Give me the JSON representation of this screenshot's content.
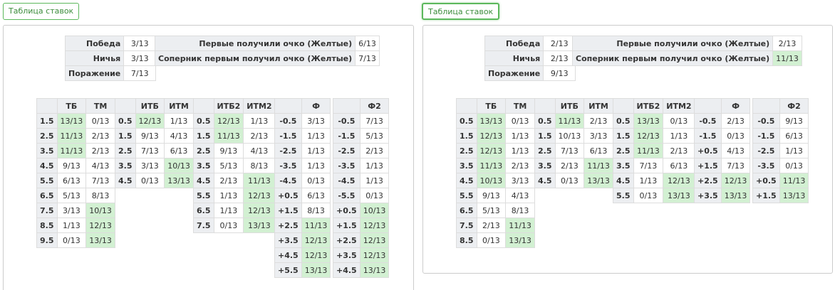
{
  "panels": [
    {
      "button": "Таблица ставок",
      "summary": [
        [
          "Победа",
          "3/13"
        ],
        [
          "Ничья",
          "3/13"
        ],
        [
          "Поражение",
          "7/13"
        ]
      ],
      "first_point": [
        [
          "Первые получили очко (Желтые)",
          "6/13"
        ],
        [
          "Соперник первым получил очко (Желтые)",
          "7/13"
        ]
      ],
      "first_point_highlight": [],
      "tables": [
        {
          "headers": [
            "ТБ",
            "ТМ"
          ],
          "rows": [
            [
              "1.5",
              "13/13",
              "0/13"
            ],
            [
              "2.5",
              "11/13",
              "2/13"
            ],
            [
              "3.5",
              "11/13",
              "2/13"
            ],
            [
              "4.5",
              "9/13",
              "4/13"
            ],
            [
              "5.5",
              "6/13",
              "7/13"
            ],
            [
              "6.5",
              "5/13",
              "8/13"
            ],
            [
              "7.5",
              "3/13",
              "10/13"
            ],
            [
              "8.5",
              "1/13",
              "12/13"
            ],
            [
              "9.5",
              "0/13",
              "13/13"
            ]
          ],
          "highlight": [
            [
              0,
              1
            ],
            [
              1,
              1
            ],
            [
              2,
              1
            ],
            [
              6,
              2
            ],
            [
              7,
              2
            ],
            [
              8,
              2
            ]
          ]
        },
        {
          "headers": [
            "ИТБ",
            "ИТМ"
          ],
          "rows": [
            [
              "0.5",
              "12/13",
              "1/13"
            ],
            [
              "1.5",
              "9/13",
              "4/13"
            ],
            [
              "2.5",
              "7/13",
              "6/13"
            ],
            [
              "3.5",
              "3/13",
              "10/13"
            ],
            [
              "4.5",
              "0/13",
              "13/13"
            ]
          ],
          "highlight": [
            [
              0,
              1
            ],
            [
              3,
              2
            ],
            [
              4,
              2
            ]
          ]
        },
        {
          "headers": [
            "ИТБ2",
            "ИТМ2"
          ],
          "rows": [
            [
              "0.5",
              "12/13",
              "1/13"
            ],
            [
              "1.5",
              "11/13",
              "2/13"
            ],
            [
              "2.5",
              "9/13",
              "4/13"
            ],
            [
              "3.5",
              "5/13",
              "8/13"
            ],
            [
              "4.5",
              "2/13",
              "11/13"
            ],
            [
              "5.5",
              "1/13",
              "12/13"
            ],
            [
              "6.5",
              "1/13",
              "12/13"
            ],
            [
              "7.5",
              "0/13",
              "13/13"
            ]
          ],
          "highlight": [
            [
              0,
              1
            ],
            [
              1,
              1
            ],
            [
              4,
              2
            ],
            [
              5,
              2
            ],
            [
              6,
              2
            ],
            [
              7,
              2
            ]
          ]
        },
        {
          "headers": [
            "Ф"
          ],
          "rows": [
            [
              "-0.5",
              "3/13"
            ],
            [
              "-1.5",
              "1/13"
            ],
            [
              "-2.5",
              "1/13"
            ],
            [
              "-3.5",
              "1/13"
            ],
            [
              "-4.5",
              "0/13"
            ],
            [
              "+0.5",
              "6/13"
            ],
            [
              "+1.5",
              "8/13"
            ],
            [
              "+2.5",
              "11/13"
            ],
            [
              "+3.5",
              "12/13"
            ],
            [
              "+4.5",
              "12/13"
            ],
            [
              "+5.5",
              "13/13"
            ]
          ],
          "highlight": [
            [
              7,
              1
            ],
            [
              8,
              1
            ],
            [
              9,
              1
            ],
            [
              10,
              1
            ]
          ]
        },
        {
          "headers": [
            "Ф2"
          ],
          "rows": [
            [
              "-0.5",
              "7/13"
            ],
            [
              "-1.5",
              "5/13"
            ],
            [
              "-2.5",
              "2/13"
            ],
            [
              "-3.5",
              "1/13"
            ],
            [
              "-4.5",
              "1/13"
            ],
            [
              "-5.5",
              "0/13"
            ],
            [
              "+0.5",
              "10/13"
            ],
            [
              "+1.5",
              "12/13"
            ],
            [
              "+2.5",
              "12/13"
            ],
            [
              "+3.5",
              "12/13"
            ],
            [
              "+4.5",
              "13/13"
            ]
          ],
          "highlight": [
            [
              6,
              1
            ],
            [
              7,
              1
            ],
            [
              8,
              1
            ],
            [
              9,
              1
            ],
            [
              10,
              1
            ]
          ]
        }
      ]
    },
    {
      "button": "Таблица ставок",
      "summary": [
        [
          "Победа",
          "2/13"
        ],
        [
          "Ничья",
          "2/13"
        ],
        [
          "Поражение",
          "9/13"
        ]
      ],
      "first_point": [
        [
          "Первые получили очко (Желтые)",
          "2/13"
        ],
        [
          "Соперник первым получил очко (Желтые)",
          "11/13"
        ]
      ],
      "first_point_highlight": [
        1
      ],
      "tables": [
        {
          "headers": [
            "ТБ",
            "ТМ"
          ],
          "rows": [
            [
              "0.5",
              "13/13",
              "0/13"
            ],
            [
              "1.5",
              "12/13",
              "1/13"
            ],
            [
              "2.5",
              "12/13",
              "1/13"
            ],
            [
              "3.5",
              "11/13",
              "2/13"
            ],
            [
              "4.5",
              "10/13",
              "3/13"
            ],
            [
              "5.5",
              "9/13",
              "4/13"
            ],
            [
              "6.5",
              "5/13",
              "8/13"
            ],
            [
              "7.5",
              "2/13",
              "11/13"
            ],
            [
              "8.5",
              "0/13",
              "13/13"
            ]
          ],
          "highlight": [
            [
              0,
              1
            ],
            [
              1,
              1
            ],
            [
              2,
              1
            ],
            [
              3,
              1
            ],
            [
              4,
              1
            ],
            [
              7,
              2
            ],
            [
              8,
              2
            ]
          ]
        },
        {
          "headers": [
            "ИТБ",
            "ИТМ"
          ],
          "rows": [
            [
              "0.5",
              "11/13",
              "2/13"
            ],
            [
              "1.5",
              "10/13",
              "3/13"
            ],
            [
              "2.5",
              "7/13",
              "6/13"
            ],
            [
              "3.5",
              "2/13",
              "11/13"
            ],
            [
              "4.5",
              "0/13",
              "13/13"
            ]
          ],
          "highlight": [
            [
              0,
              1
            ],
            [
              3,
              2
            ],
            [
              4,
              2
            ]
          ]
        },
        {
          "headers": [
            "ИТБ2",
            "ИТМ2"
          ],
          "rows": [
            [
              "0.5",
              "13/13",
              "0/13"
            ],
            [
              "1.5",
              "12/13",
              "1/13"
            ],
            [
              "2.5",
              "11/13",
              "2/13"
            ],
            [
              "3.5",
              "7/13",
              "6/13"
            ],
            [
              "4.5",
              "1/13",
              "12/13"
            ],
            [
              "5.5",
              "0/13",
              "13/13"
            ]
          ],
          "highlight": [
            [
              0,
              1
            ],
            [
              1,
              1
            ],
            [
              2,
              1
            ],
            [
              4,
              2
            ],
            [
              5,
              2
            ]
          ]
        },
        {
          "headers": [
            "Ф"
          ],
          "rows": [
            [
              "-0.5",
              "2/13"
            ],
            [
              "-1.5",
              "0/13"
            ],
            [
              "+0.5",
              "4/13"
            ],
            [
              "+1.5",
              "7/13"
            ],
            [
              "+2.5",
              "12/13"
            ],
            [
              "+3.5",
              "13/13"
            ]
          ],
          "highlight": [
            [
              4,
              1
            ],
            [
              5,
              1
            ]
          ]
        },
        {
          "headers": [
            "Ф2"
          ],
          "rows": [
            [
              "-0.5",
              "9/13"
            ],
            [
              "-1.5",
              "6/13"
            ],
            [
              "-2.5",
              "1/13"
            ],
            [
              "-3.5",
              "0/13"
            ],
            [
              "+0.5",
              "11/13"
            ],
            [
              "+1.5",
              "13/13"
            ]
          ],
          "highlight": [
            [
              4,
              1
            ],
            [
              5,
              1
            ]
          ]
        }
      ]
    }
  ]
}
